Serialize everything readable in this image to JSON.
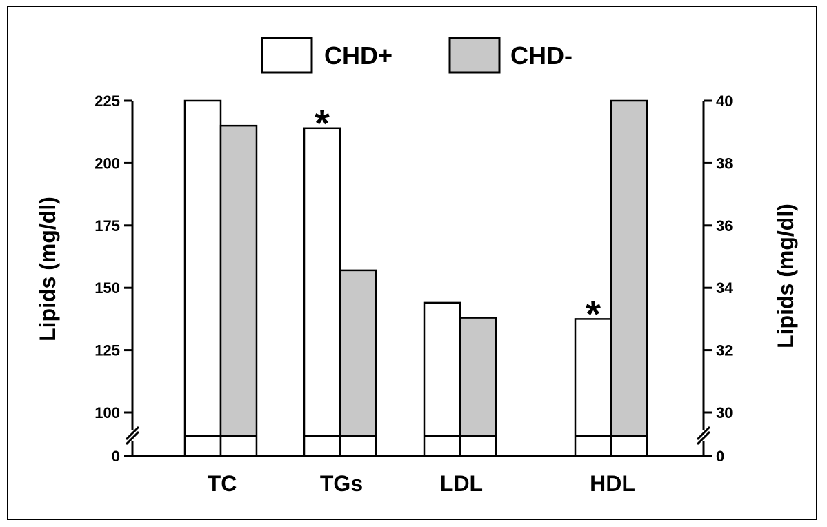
{
  "chart_data": {
    "type": "bar",
    "categories": [
      "TC",
      "TGs",
      "LDL",
      "HDL"
    ],
    "series": [
      {
        "name": "CHD+",
        "color": "#ffffff",
        "values": [
          225,
          214,
          144,
          33
        ]
      },
      {
        "name": "CHD-",
        "color": "#c8c8c8",
        "values": [
          215,
          157,
          138,
          40
        ]
      }
    ],
    "value_axis": [
      "left",
      "left",
      "left",
      "right"
    ],
    "left_axis": {
      "label": "Lipids (mg/dl)",
      "range_broken": [
        100,
        225
      ],
      "ticks": [
        "225",
        "200",
        "175",
        "150",
        "125",
        "100"
      ],
      "tick_values": [
        225,
        200,
        175,
        150,
        125,
        100
      ],
      "zero_label": "0"
    },
    "right_axis": {
      "label": "Lipids (mg/dl)",
      "range_broken": [
        30,
        40
      ],
      "ticks": [
        "40",
        "38",
        "36",
        "34",
        "32",
        "30"
      ],
      "tick_values": [
        40,
        38,
        36,
        34,
        32,
        30
      ],
      "zero_label": "0"
    },
    "significance": [
      false,
      true,
      false,
      true
    ],
    "significance_marker": "*",
    "legend_position": "top-center",
    "grid": false,
    "axis_break": true
  }
}
